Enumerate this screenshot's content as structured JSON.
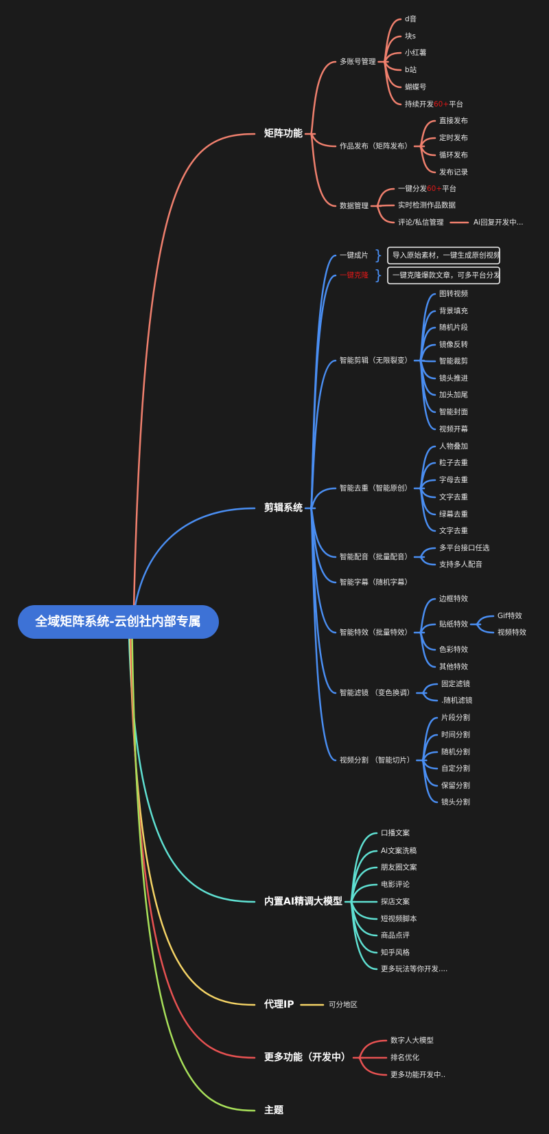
{
  "root": {
    "label": "全域矩阵系统-云创社内部专属",
    "color": "#3d72d6"
  },
  "branches": [
    {
      "label": "矩阵功能",
      "color": "#f0806e",
      "children": [
        {
          "label": "多账号管理",
          "children": [
            {
              "label": "d音"
            },
            {
              "label": "块s"
            },
            {
              "label": "小红薯"
            },
            {
              "label": "b站"
            },
            {
              "label": "蝴蝶号"
            },
            {
              "label": "持续开发",
              "highlight": "60+",
              "suffix": "平台"
            }
          ]
        },
        {
          "label": "作品发布（矩阵发布）",
          "children": [
            {
              "label": "直接发布"
            },
            {
              "label": "定时发布"
            },
            {
              "label": "循环发布"
            },
            {
              "label": "发布记录"
            }
          ]
        },
        {
          "label": "数据管理",
          "children": [
            {
              "label": "一键分发",
              "highlight": "60+",
              "suffix": "平台"
            },
            {
              "label": "实时检测作品数据"
            },
            {
              "label": "评论/私信管理",
              "children": [
                {
                  "label": "Ai回复开发中..."
                }
              ]
            }
          ]
        }
      ]
    },
    {
      "label": "剪辑系统",
      "color": "#4a8ef2",
      "children": [
        {
          "label": "一键成片",
          "note": "导入原始素材，一键生成原创视频"
        },
        {
          "label": "一键克隆",
          "red": true,
          "note": "一键克隆爆款文章，可多平台分发"
        },
        {
          "label": "智能剪辑（无限裂变）",
          "children": [
            {
              "label": "图转视频"
            },
            {
              "label": "背景填充"
            },
            {
              "label": "随机片段"
            },
            {
              "label": "镜像反转"
            },
            {
              "label": "智能裁剪"
            },
            {
              "label": "镜头推进"
            },
            {
              "label": "加头加尾"
            },
            {
              "label": "智能封面"
            },
            {
              "label": "视频开幕"
            }
          ]
        },
        {
          "label": "智能去重（智能原创）",
          "children": [
            {
              "label": "人物叠加"
            },
            {
              "label": "粒子去重"
            },
            {
              "label": "字母去重"
            },
            {
              "label": "文字去重"
            },
            {
              "label": "绿幕去重"
            },
            {
              "label": "文字去重"
            }
          ]
        },
        {
          "label": "智能配音（批量配音）",
          "children": [
            {
              "label": "多平台接口任选"
            },
            {
              "label": "支持多人配音"
            }
          ]
        },
        {
          "label": "智能字幕（随机字幕）"
        },
        {
          "label": "智能特效（批量特效）",
          "children": [
            {
              "label": "边框特效"
            },
            {
              "label": "贴纸特效",
              "children": [
                {
                  "label": "Gif特效"
                },
                {
                  "label": "视频特效"
                }
              ]
            },
            {
              "label": "色彩特效"
            },
            {
              "label": "其他特效"
            }
          ]
        },
        {
          "label": "智能滤镜 （变色换调）",
          "children": [
            {
              "label": "固定滤镜"
            },
            {
              "label": ".随机滤镜"
            }
          ]
        },
        {
          "label": "视频分割 （智能切片）",
          "children": [
            {
              "label": "片段分割"
            },
            {
              "label": "时间分割"
            },
            {
              "label": "随机分割"
            },
            {
              "label": "自定分割"
            },
            {
              "label": "保留分割"
            },
            {
              "label": "镜头分割"
            }
          ]
        }
      ]
    },
    {
      "label": "内置AI精调大模型",
      "color": "#5fe0d2",
      "children": [
        {
          "label": "口播文案"
        },
        {
          "label": "Ai文案洗稿"
        },
        {
          "label": "朋友圈文案"
        },
        {
          "label": "电影评论"
        },
        {
          "label": "探店文案"
        },
        {
          "label": "短视频脚本"
        },
        {
          "label": "商品点评"
        },
        {
          "label": "知乎风格"
        },
        {
          "label": "更多玩法等你开发...."
        }
      ]
    },
    {
      "label": "代理IP",
      "color": "#f5d466",
      "children": [
        {
          "label": "可分地区"
        }
      ]
    },
    {
      "label": "更多功能（开发中）",
      "color": "#e85252",
      "children": [
        {
          "label": "数字人大模型"
        },
        {
          "label": "排名优化"
        },
        {
          "label": "更多功能开发中.."
        }
      ]
    },
    {
      "label": "主题",
      "color": "#a8e05a"
    }
  ]
}
